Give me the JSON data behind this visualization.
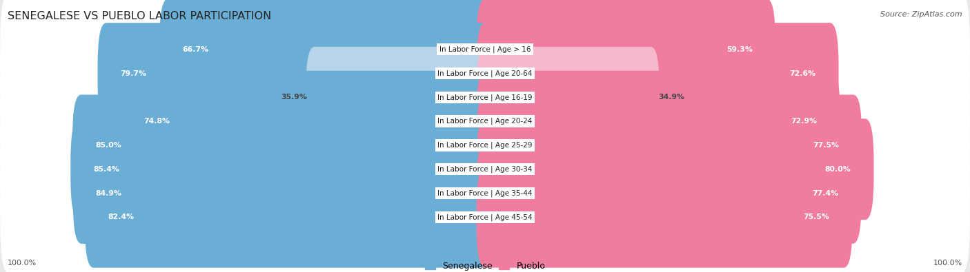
{
  "title": "SENEGALESE VS PUEBLO LABOR PARTICIPATION",
  "source": "Source: ZipAtlas.com",
  "categories": [
    "In Labor Force | Age > 16",
    "In Labor Force | Age 20-64",
    "In Labor Force | Age 16-19",
    "In Labor Force | Age 20-24",
    "In Labor Force | Age 25-29",
    "In Labor Force | Age 30-34",
    "In Labor Force | Age 35-44",
    "In Labor Force | Age 45-54"
  ],
  "senegalese": [
    66.7,
    79.7,
    35.9,
    74.8,
    85.0,
    85.4,
    84.9,
    82.4
  ],
  "pueblo": [
    59.3,
    72.6,
    34.9,
    72.9,
    77.5,
    80.0,
    77.4,
    75.5
  ],
  "senegalese_color": "#6aaed6",
  "pueblo_color": "#f07ca0",
  "senegalese_light_color": "#b8d4ea",
  "pueblo_light_color": "#f5b8cc",
  "bg_color": "#e8e8e8",
  "row_bg_color": "#ffffff",
  "bar_height": 0.62,
  "max_val": 100.0,
  "legend_labels": [
    "Senegalese",
    "Pueblo"
  ],
  "bottom_label": "100.0%"
}
